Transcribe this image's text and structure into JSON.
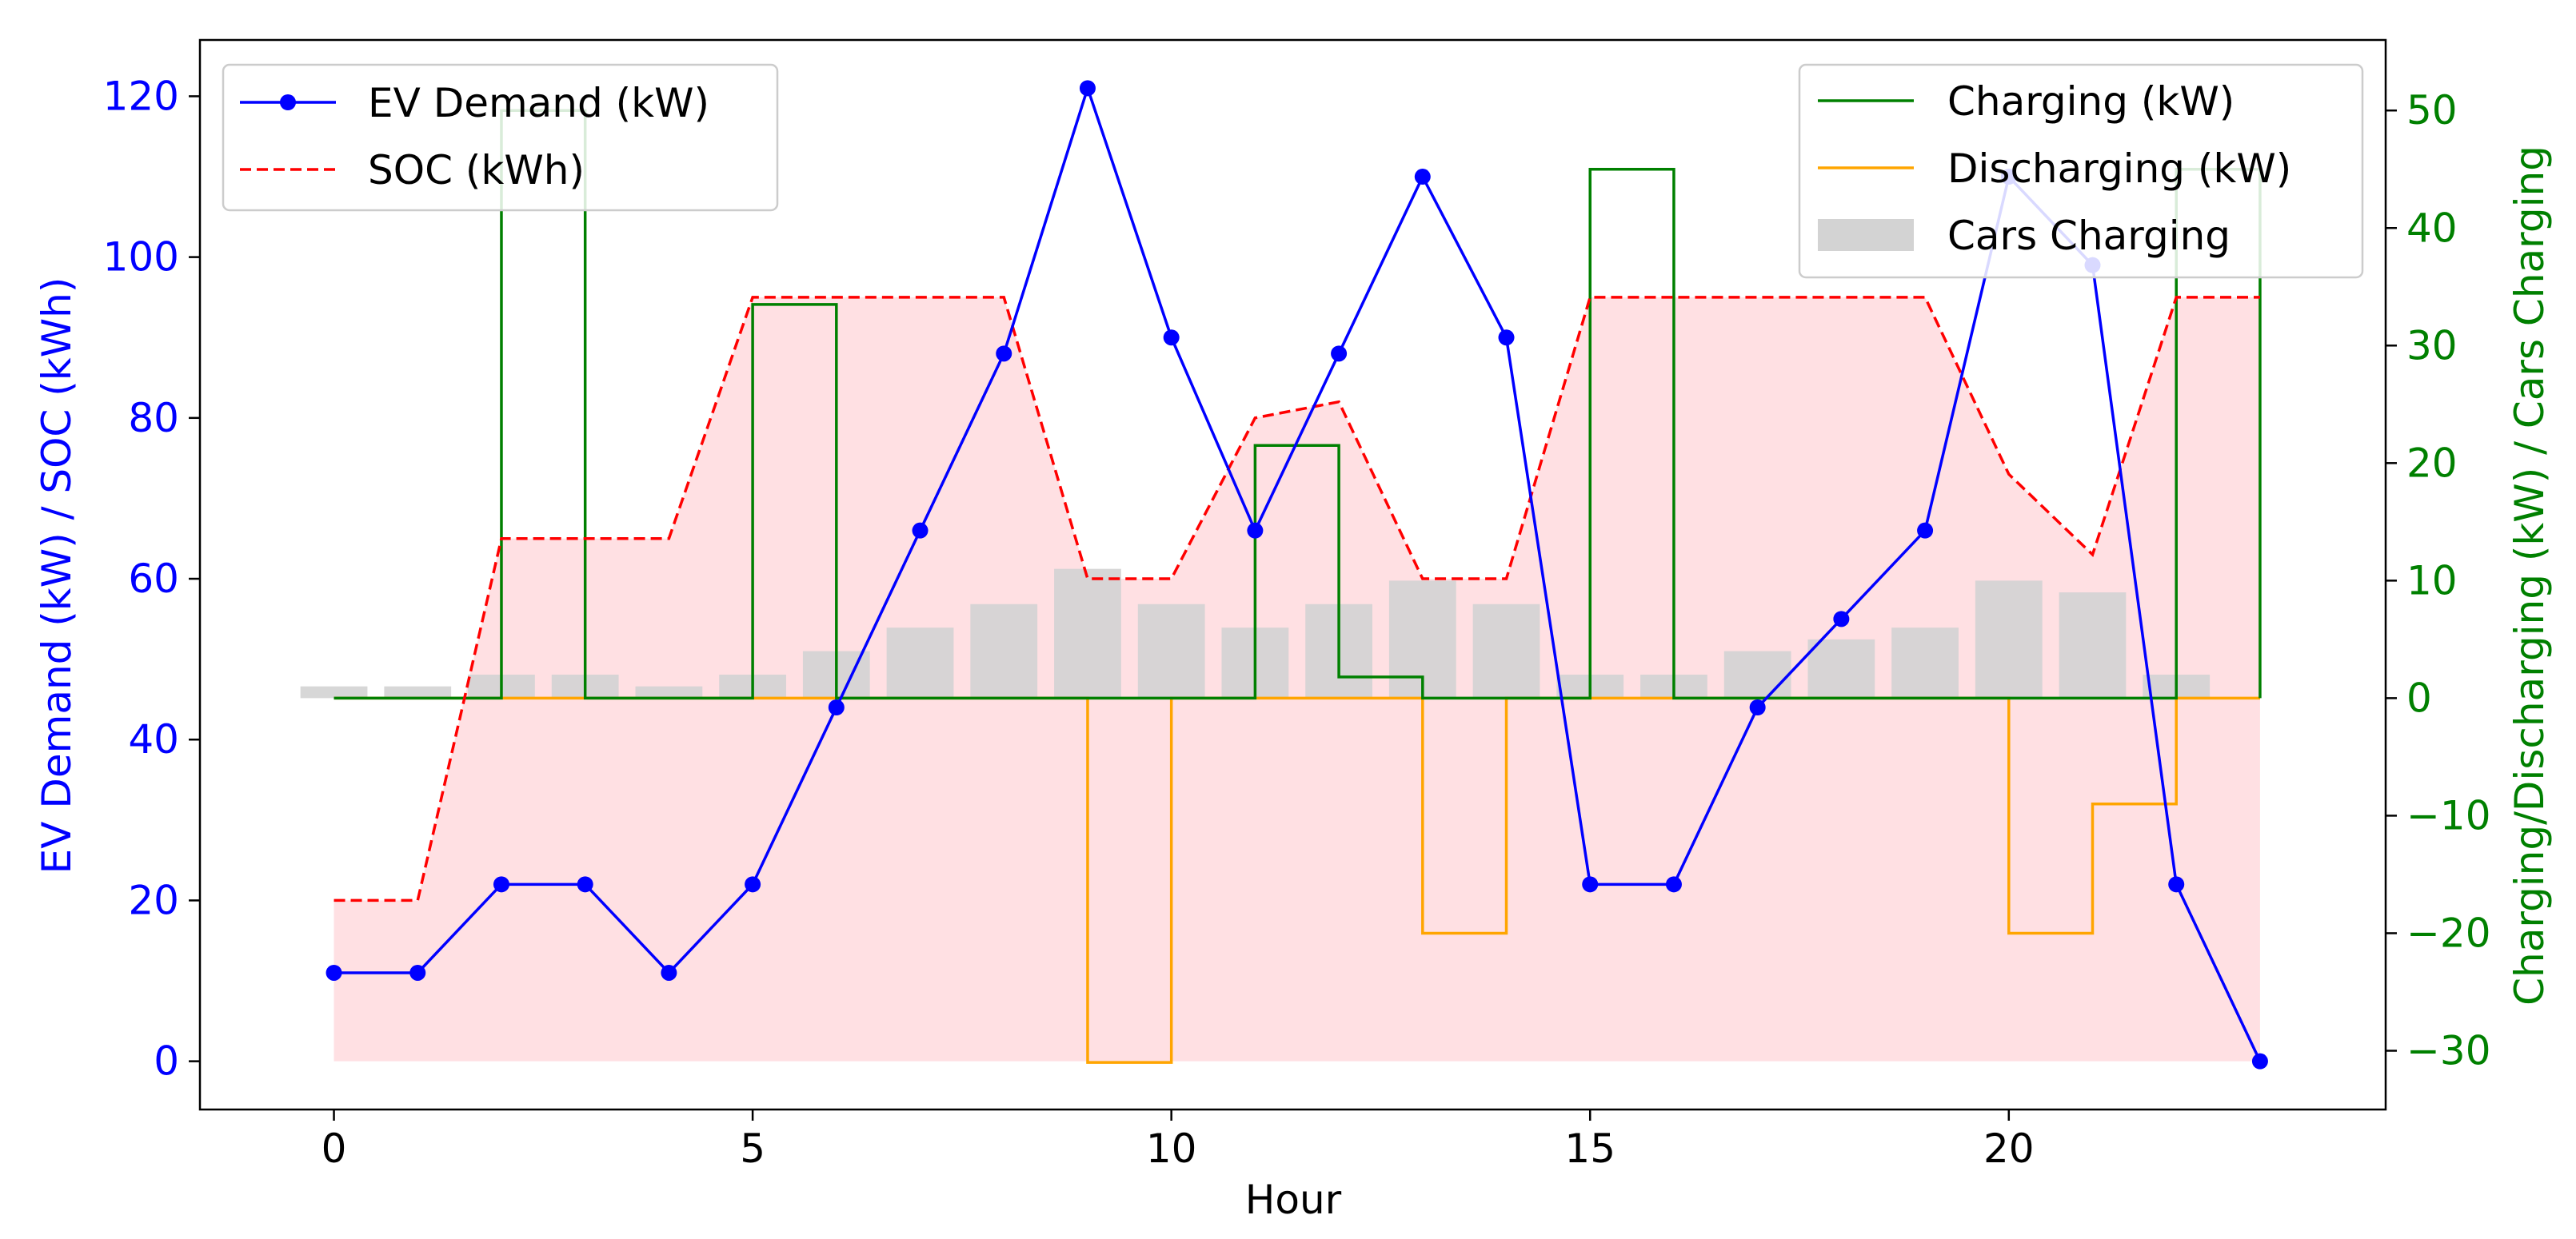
{
  "chart_data": {
    "type": "line",
    "title": "",
    "xlabel": "Hour",
    "ylabel_left": "EV Demand (kW) / SOC (kWh)",
    "ylabel_right": "Charging/Discharging (kW) / Cars Charging",
    "xlim": [
      -1.6,
      24.5
    ],
    "ylim_left": [
      -6,
      127
    ],
    "ylim_right": [
      -35,
      56
    ],
    "xticks": [
      0,
      5,
      10,
      15,
      20
    ],
    "xtick_labels": [
      "0",
      "5",
      "10",
      "15",
      "20"
    ],
    "yticks_left": [
      0,
      20,
      40,
      60,
      80,
      100,
      120
    ],
    "ytick_labels_left": [
      "0",
      "20",
      "40",
      "60",
      "80",
      "100",
      "120"
    ],
    "yticks_right": [
      -30,
      -20,
      -10,
      0,
      10,
      20,
      30,
      40,
      50
    ],
    "ytick_labels_right": [
      "−30",
      "−20",
      "−10",
      "0",
      "10",
      "20",
      "30",
      "40",
      "50"
    ],
    "hours": [
      0,
      1,
      2,
      3,
      4,
      5,
      6,
      7,
      8,
      9,
      10,
      11,
      12,
      13,
      14,
      15,
      16,
      17,
      18,
      19,
      20,
      21,
      22,
      23
    ],
    "series": [
      {
        "name": "EV Demand (kW)",
        "axis": "left",
        "style": "line-marker",
        "color": "#0000ff",
        "values": [
          11,
          11,
          22,
          22,
          11,
          22,
          44,
          66,
          88,
          121,
          90,
          66,
          88,
          110,
          90,
          22,
          22,
          44,
          55,
          66,
          110,
          99,
          22,
          0
        ]
      },
      {
        "name": "SOC (kWh)",
        "axis": "left",
        "style": "dashed",
        "color": "#ff0000",
        "fill": "#ffe0e3",
        "values": [
          20,
          20,
          65,
          65,
          65,
          95,
          95,
          95,
          95,
          60,
          60,
          80,
          82,
          60,
          60,
          95,
          95,
          95,
          95,
          95,
          73,
          63,
          95,
          95
        ]
      },
      {
        "name": "Charging (kW)",
        "axis": "right",
        "style": "step",
        "color": "#008000",
        "values": [
          0,
          0,
          50,
          0,
          0,
          33.5,
          0,
          0,
          0,
          0,
          0,
          21.5,
          1.8,
          0,
          0,
          45,
          0,
          0,
          0,
          0,
          0,
          0,
          45,
          0
        ]
      },
      {
        "name": "Discharging (kW)",
        "axis": "right",
        "style": "step",
        "color": "#ffa500",
        "values": [
          0,
          0,
          0,
          0,
          0,
          0,
          0,
          0,
          0,
          -31,
          0,
          0,
          0,
          -20,
          0,
          0,
          0,
          0,
          0,
          0,
          -20,
          -9,
          0,
          0
        ]
      },
      {
        "name": "Cars Charging",
        "axis": "right",
        "style": "bar",
        "color": "#d3d3d3",
        "values": [
          1,
          1,
          2,
          2,
          1,
          2,
          4,
          6,
          8,
          11,
          8,
          6,
          8,
          10,
          8,
          2,
          2,
          4,
          5,
          6,
          10,
          9,
          2,
          0
        ]
      }
    ],
    "legend_left": [
      "EV Demand (kW)",
      "SOC (kWh)"
    ],
    "legend_right": [
      "Charging (kW)",
      "Discharging (kW)",
      "Cars Charging"
    ],
    "legend_left_position": "upper-left",
    "legend_right_position": "upper-right"
  }
}
